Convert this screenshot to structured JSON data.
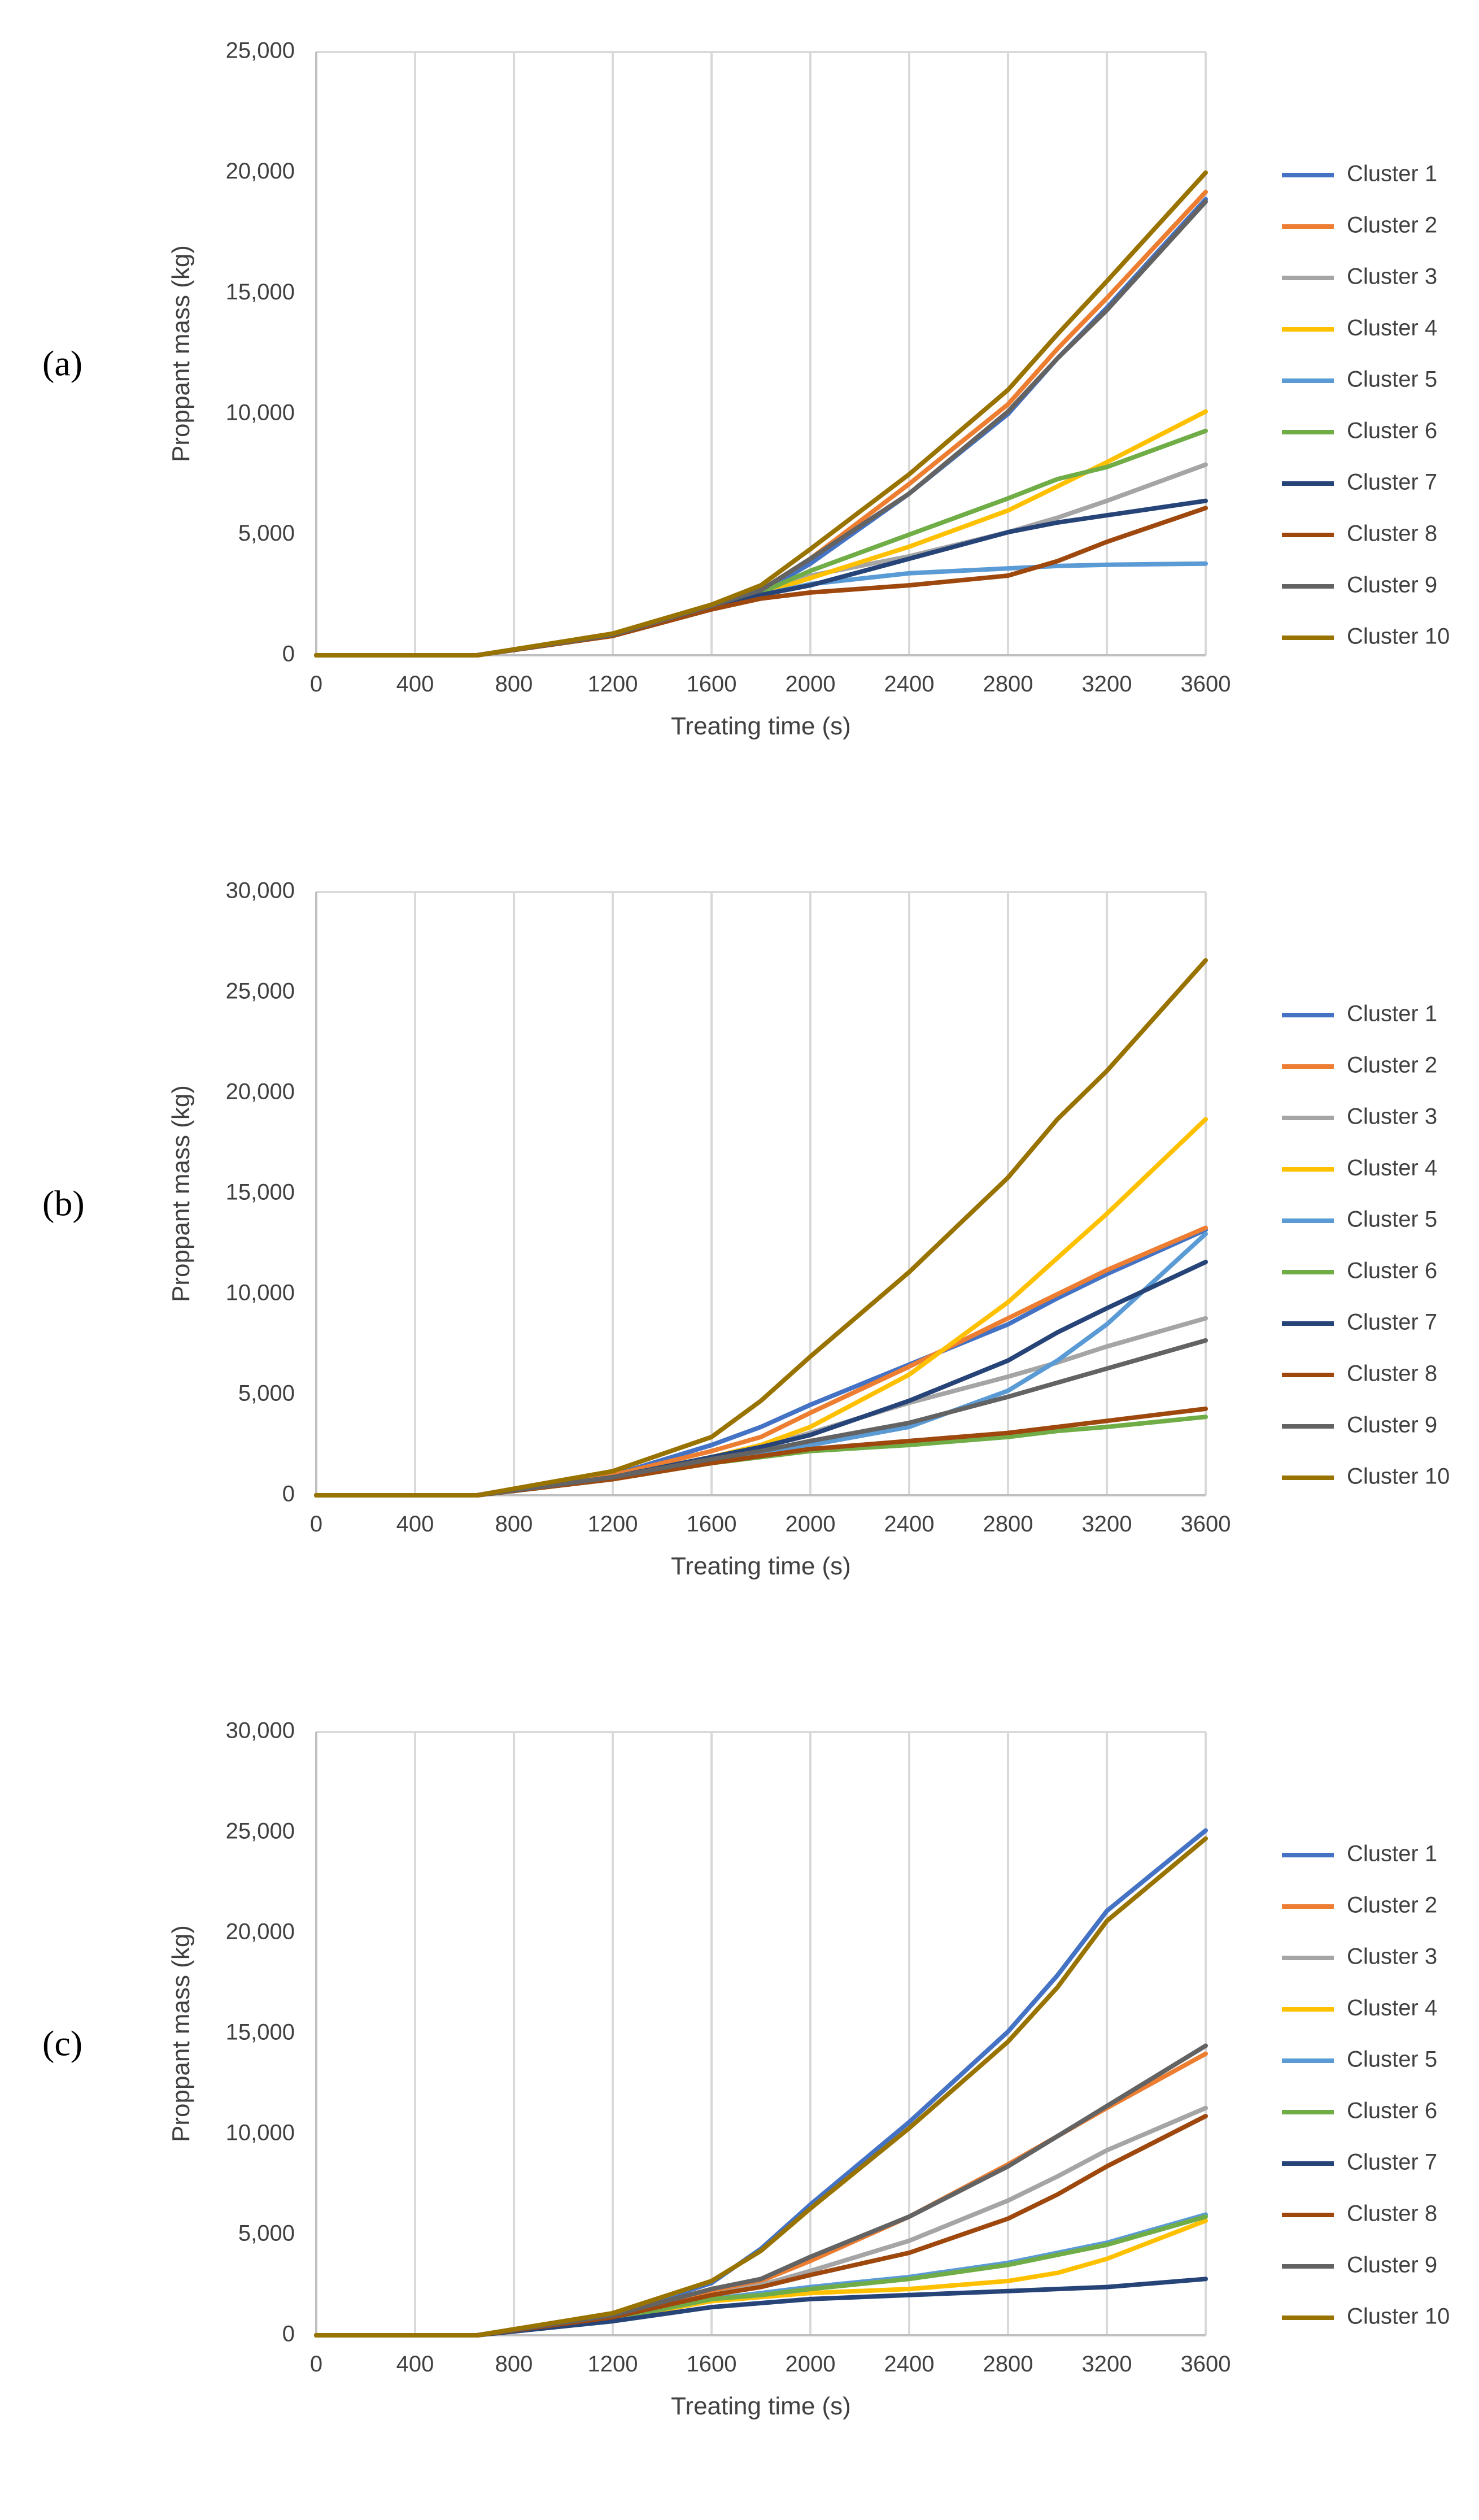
{
  "chart_data": [
    {
      "type": "line",
      "panel_label": "(a)",
      "xlabel": "Treating time (s)",
      "ylabel": "Proppant mass (kg)",
      "xlim": [
        0,
        3600
      ],
      "ylim": [
        0,
        25000
      ],
      "xticks": [
        "0",
        "400",
        "800",
        "1200",
        "1600",
        "2000",
        "2400",
        "2800",
        "3200",
        "3600"
      ],
      "yticks": [
        "0",
        "5,000",
        "10,000",
        "15,000",
        "20,000",
        "25,000"
      ],
      "ytick_values": [
        0,
        5000,
        10000,
        15000,
        20000,
        25000
      ],
      "grid": "vertical",
      "legend": "right",
      "x": [
        0,
        600,
        650,
        1200,
        1600,
        1800,
        2000,
        2400,
        2800,
        3000,
        3200,
        3600
      ],
      "series": [
        {
          "name": "Cluster 1",
          "color": "#4472C4",
          "values": [
            0,
            0,
            0,
            850,
            2000,
            2600,
            3800,
            6700,
            10000,
            12300,
            14400,
            18900
          ]
        },
        {
          "name": "Cluster 2",
          "color": "#ED7D31",
          "values": [
            0,
            0,
            0,
            850,
            2050,
            2700,
            4000,
            7100,
            10400,
            12700,
            14800,
            19200
          ]
        },
        {
          "name": "Cluster 3",
          "color": "#A5A5A5",
          "values": [
            0,
            0,
            0,
            850,
            2000,
            2550,
            3300,
            4100,
            5100,
            5700,
            6400,
            7900
          ]
        },
        {
          "name": "Cluster 4",
          "color": "#FFC000",
          "values": [
            0,
            0,
            0,
            850,
            2000,
            2550,
            3200,
            4500,
            6000,
            7000,
            8000,
            10100
          ]
        },
        {
          "name": "Cluster 5",
          "color": "#5B9BD5",
          "values": [
            0,
            0,
            0,
            850,
            2000,
            2500,
            2950,
            3400,
            3600,
            3700,
            3750,
            3800
          ]
        },
        {
          "name": "Cluster 6",
          "color": "#70AD47",
          "values": [
            0,
            0,
            0,
            850,
            2000,
            2600,
            3500,
            5000,
            6500,
            7300,
            7800,
            9300
          ]
        },
        {
          "name": "Cluster 7",
          "color": "#264478",
          "values": [
            0,
            0,
            0,
            850,
            2000,
            2500,
            2900,
            4000,
            5100,
            5500,
            5800,
            6400
          ]
        },
        {
          "name": "Cluster 8",
          "color": "#9E480E",
          "values": [
            0,
            0,
            0,
            800,
            1900,
            2350,
            2600,
            2900,
            3300,
            3900,
            4700,
            6100
          ]
        },
        {
          "name": "Cluster 9",
          "color": "#636363",
          "values": [
            0,
            0,
            0,
            850,
            2050,
            2700,
            4000,
            6700,
            10100,
            12300,
            14300,
            18800
          ]
        },
        {
          "name": "Cluster 10",
          "color": "#997300",
          "values": [
            0,
            0,
            0,
            900,
            2100,
            2900,
            4400,
            7500,
            11000,
            13300,
            15500,
            20000
          ]
        }
      ]
    },
    {
      "type": "line",
      "panel_label": "(b)",
      "xlabel": "Treating time (s)",
      "ylabel": "Proppant mass (kg)",
      "xlim": [
        0,
        3600
      ],
      "ylim": [
        0,
        30000
      ],
      "xticks": [
        "0",
        "400",
        "800",
        "1200",
        "1600",
        "2000",
        "2400",
        "2800",
        "3200",
        "3600"
      ],
      "yticks": [
        "0",
        "5,000",
        "10,000",
        "15,000",
        "20,000",
        "25,000",
        "30,000"
      ],
      "ytick_values": [
        0,
        5000,
        10000,
        15000,
        20000,
        25000,
        30000
      ],
      "grid": "vertical",
      "legend": "right",
      "x": [
        0,
        600,
        650,
        1200,
        1600,
        1800,
        2000,
        2400,
        2800,
        3000,
        3200,
        3600
      ],
      "series": [
        {
          "name": "Cluster 1",
          "color": "#4472C4",
          "values": [
            0,
            0,
            0,
            1000,
            2500,
            3400,
            4500,
            6500,
            8500,
            9800,
            11000,
            13200
          ]
        },
        {
          "name": "Cluster 2",
          "color": "#ED7D31",
          "values": [
            0,
            0,
            0,
            1000,
            2200,
            2900,
            4100,
            6400,
            8800,
            10000,
            11200,
            13300
          ]
        },
        {
          "name": "Cluster 3",
          "color": "#A5A5A5",
          "values": [
            0,
            0,
            0,
            900,
            1900,
            2400,
            3100,
            4600,
            5900,
            6600,
            7400,
            8800
          ]
        },
        {
          "name": "Cluster 4",
          "color": "#FFC000",
          "values": [
            0,
            0,
            0,
            900,
            1900,
            2500,
            3400,
            6000,
            9600,
            11800,
            14000,
            18700
          ]
        },
        {
          "name": "Cluster 5",
          "color": "#5B9BD5",
          "values": [
            0,
            0,
            0,
            800,
            1700,
            2100,
            2500,
            3400,
            5200,
            6700,
            8500,
            13000
          ]
        },
        {
          "name": "Cluster 6",
          "color": "#70AD47",
          "values": [
            0,
            0,
            0,
            800,
            1600,
            1900,
            2200,
            2500,
            2900,
            3200,
            3400,
            3900
          ]
        },
        {
          "name": "Cluster 7",
          "color": "#264478",
          "values": [
            0,
            0,
            0,
            900,
            1900,
            2400,
            3000,
            4700,
            6700,
            8100,
            9300,
            11600
          ]
        },
        {
          "name": "Cluster 8",
          "color": "#9E480E",
          "values": [
            0,
            0,
            0,
            800,
            1600,
            1950,
            2300,
            2700,
            3100,
            3400,
            3700,
            4300
          ]
        },
        {
          "name": "Cluster 9",
          "color": "#636363",
          "values": [
            0,
            0,
            0,
            900,
            1800,
            2200,
            2700,
            3600,
            4900,
            5600,
            6300,
            7700
          ]
        },
        {
          "name": "Cluster 10",
          "color": "#997300",
          "values": [
            0,
            0,
            0,
            1200,
            2900,
            4700,
            6900,
            11100,
            15800,
            18700,
            21100,
            26600
          ]
        }
      ]
    },
    {
      "type": "line",
      "panel_label": "(c)",
      "xlabel": "Treating time (s)",
      "ylabel": "Proppant mass (kg)",
      "xlim": [
        0,
        3600
      ],
      "ylim": [
        0,
        30000
      ],
      "xticks": [
        "0",
        "400",
        "800",
        "1200",
        "1600",
        "2000",
        "2400",
        "2800",
        "3200",
        "3600"
      ],
      "yticks": [
        "0",
        "5,000",
        "10,000",
        "15,000",
        "20,000",
        "25,000",
        "30,000"
      ],
      "ytick_values": [
        0,
        5000,
        10000,
        15000,
        20000,
        25000,
        30000
      ],
      "grid": "vertical",
      "legend": "right",
      "x": [
        0,
        600,
        650,
        1200,
        1600,
        1800,
        2000,
        2400,
        2800,
        3000,
        3200,
        3600
      ],
      "series": [
        {
          "name": "Cluster 1",
          "color": "#4472C4",
          "values": [
            0,
            0,
            0,
            1000,
            2600,
            4300,
            6500,
            10600,
            15100,
            17900,
            21100,
            25100
          ]
        },
        {
          "name": "Cluster 2",
          "color": "#ED7D31",
          "values": [
            0,
            0,
            0,
            900,
            2100,
            2700,
            3700,
            5900,
            8500,
            9900,
            11300,
            14000
          ]
        },
        {
          "name": "Cluster 3",
          "color": "#A5A5A5",
          "values": [
            0,
            0,
            0,
            900,
            2000,
            2500,
            3200,
            4700,
            6700,
            7900,
            9200,
            11300
          ]
        },
        {
          "name": "Cluster 4",
          "color": "#FFC000",
          "values": [
            0,
            0,
            0,
            800,
            1700,
            1900,
            2100,
            2300,
            2700,
            3100,
            3800,
            5700
          ]
        },
        {
          "name": "Cluster 5",
          "color": "#5B9BD5",
          "values": [
            0,
            0,
            0,
            800,
            1800,
            2100,
            2400,
            2900,
            3600,
            4100,
            4600,
            6000
          ]
        },
        {
          "name": "Cluster 6",
          "color": "#70AD47",
          "values": [
            0,
            0,
            0,
            800,
            1800,
            2000,
            2300,
            2800,
            3500,
            4000,
            4500,
            5900
          ]
        },
        {
          "name": "Cluster 7",
          "color": "#264478",
          "values": [
            0,
            0,
            0,
            700,
            1400,
            1600,
            1800,
            2000,
            2200,
            2300,
            2400,
            2800
          ]
        },
        {
          "name": "Cluster 8",
          "color": "#9E480E",
          "values": [
            0,
            0,
            0,
            900,
            2000,
            2400,
            3000,
            4100,
            5800,
            7000,
            8400,
            10900
          ]
        },
        {
          "name": "Cluster 9",
          "color": "#636363",
          "values": [
            0,
            0,
            0,
            1000,
            2300,
            2800,
            3900,
            5900,
            8400,
            9900,
            11400,
            14400
          ]
        },
        {
          "name": "Cluster 10",
          "color": "#997300",
          "values": [
            0,
            0,
            0,
            1100,
            2700,
            4200,
            6300,
            10300,
            14600,
            17300,
            20600,
            24700
          ]
        }
      ]
    }
  ]
}
